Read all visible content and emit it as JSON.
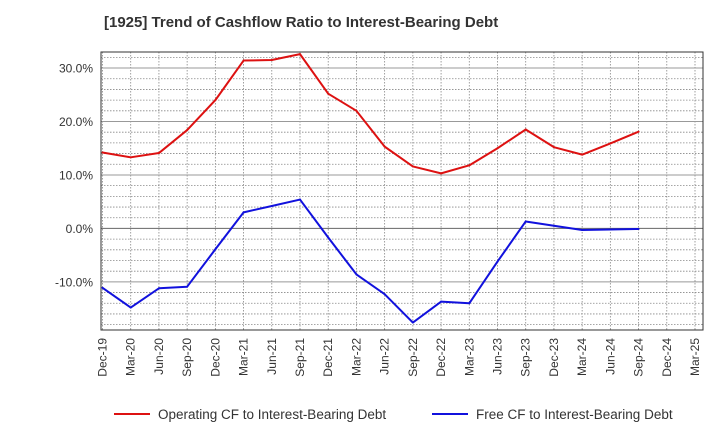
{
  "chart_data": {
    "type": "line",
    "title": "[1925]  Trend of Cashflow Ratio to Interest-Bearing Debt",
    "xlabel": "",
    "ylabel": "",
    "categories": [
      "Dec-19",
      "Mar-20",
      "Jun-20",
      "Sep-20",
      "Dec-20",
      "Mar-21",
      "Jun-21",
      "Sep-21",
      "Dec-21",
      "Mar-22",
      "Jun-22",
      "Sep-22",
      "Dec-22",
      "Mar-23",
      "Jun-23",
      "Sep-23",
      "Dec-23",
      "Mar-24",
      "Jun-24",
      "Sep-24",
      "Dec-24",
      "Mar-25"
    ],
    "ylim": [
      -19,
      33
    ],
    "yticks": [
      30,
      20,
      10,
      0,
      -10
    ],
    "ytick_labels": [
      "30.0%",
      "20.0%",
      "10.0%",
      "0.0%",
      "-10.0%"
    ],
    "grid": true,
    "legend_position": "bottom",
    "series": [
      {
        "name": "Operating CF to Interest-Bearing Debt",
        "color": "#dd1111",
        "values": [
          14.2,
          13.3,
          14.1,
          18.4,
          24.0,
          31.4,
          31.5,
          32.6,
          25.2,
          22.0,
          15.3,
          11.6,
          10.3,
          11.8,
          15.0,
          18.5,
          15.2,
          13.8,
          15.9,
          18.1,
          null,
          null
        ]
      },
      {
        "name": "Free CF to Interest-Bearing Debt",
        "color": "#1111dd",
        "values": [
          -11.1,
          -14.8,
          -11.2,
          -10.9,
          -3.9,
          3.0,
          4.2,
          5.4,
          -1.7,
          -8.6,
          -12.3,
          -17.6,
          -13.7,
          -14.0,
          -6.2,
          1.3,
          0.5,
          -0.3,
          -0.2,
          -0.1,
          null,
          null
        ]
      }
    ]
  }
}
